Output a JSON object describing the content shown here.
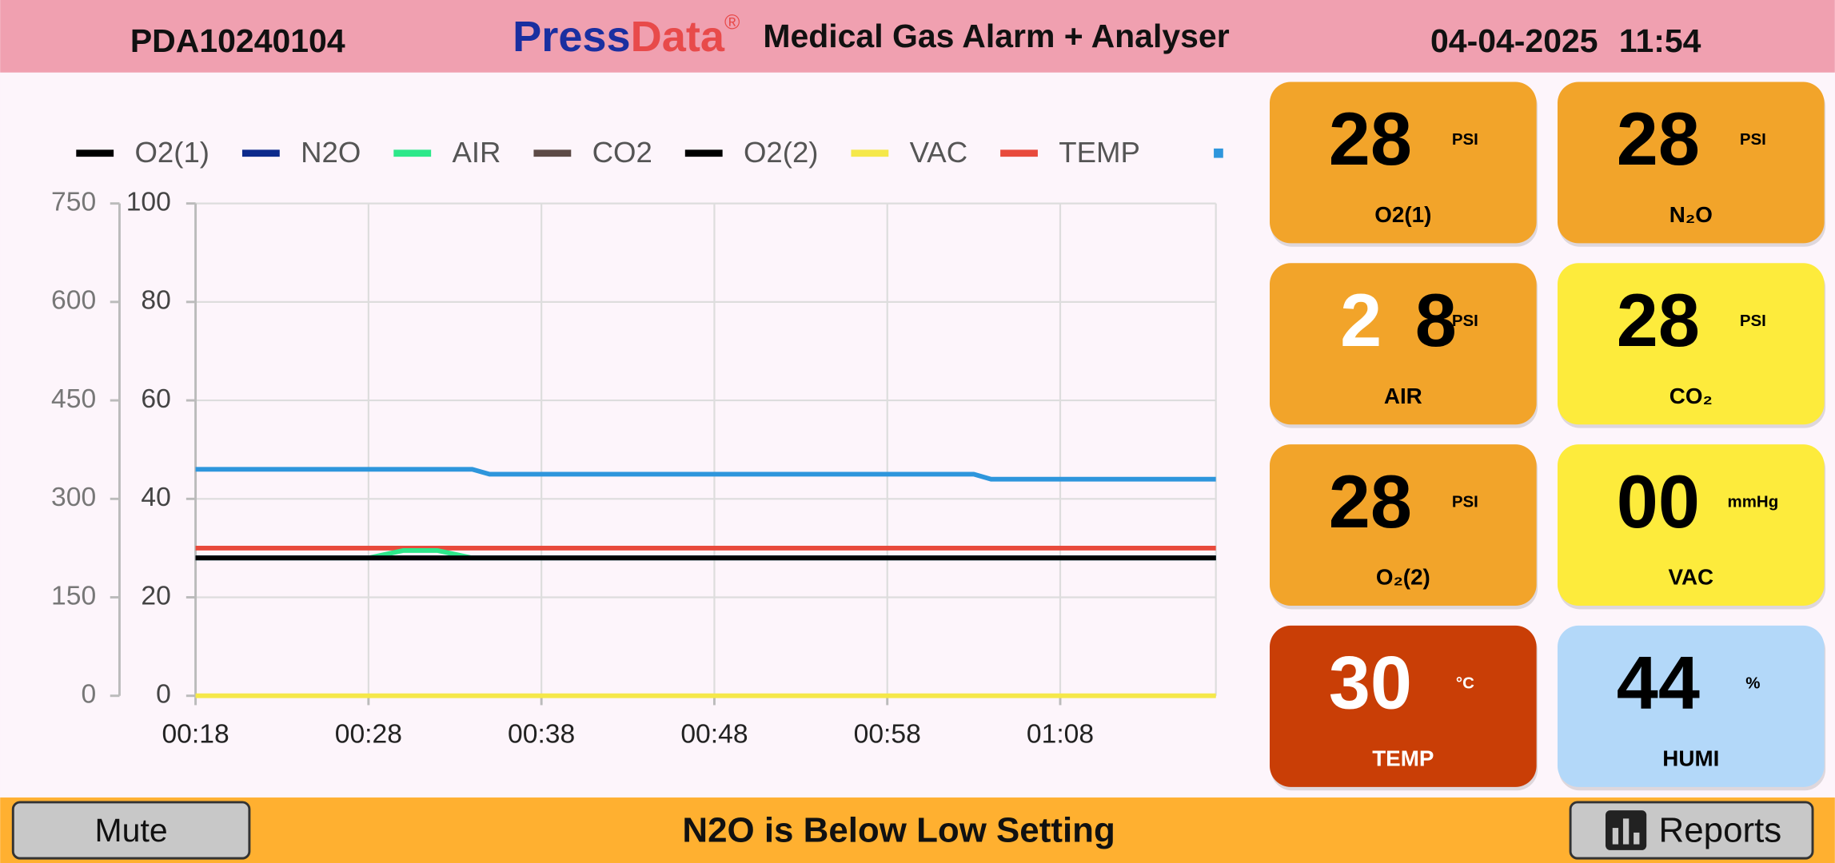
{
  "header": {
    "device_id": "PDA10240104",
    "brand_a": "Press",
    "brand_b": "Data",
    "registered": "®",
    "title": "Medical Gas Alarm + Analyser",
    "date": "04-04-2025",
    "time": "11:54"
  },
  "chart_data": {
    "type": "line",
    "x": [
      18,
      28,
      30,
      32,
      34,
      35,
      63,
      64,
      77
    ],
    "xlim": [
      18,
      77
    ],
    "xticks": [
      {
        "value": 18,
        "label": "00:18"
      },
      {
        "value": 28,
        "label": "00:28"
      },
      {
        "value": 38,
        "label": "00:38"
      },
      {
        "value": 48,
        "label": "00:48"
      },
      {
        "value": 58,
        "label": "00:58"
      },
      {
        "value": 68,
        "label": "01:08"
      }
    ],
    "ylim": [
      0,
      100
    ],
    "yticks": [
      0,
      20,
      40,
      60,
      80,
      100
    ],
    "y2lim": [
      0,
      750
    ],
    "y2ticks": [
      0,
      150,
      300,
      450,
      600,
      750
    ],
    "grid": true,
    "series": [
      {
        "name": "O2(1)",
        "color": "#000000",
        "values": [
          28,
          28,
          28,
          28,
          28,
          28,
          28,
          28,
          28
        ]
      },
      {
        "name": "N2O",
        "color": "#0d2a8c",
        "values": [
          28,
          28,
          28,
          28,
          28,
          28,
          28,
          28,
          28
        ]
      },
      {
        "name": "AIR",
        "color": "#2de88a",
        "values": [
          28,
          28,
          29.5,
          29.5,
          28,
          28,
          28,
          28,
          28
        ]
      },
      {
        "name": "CO2",
        "color": "#5d4a46",
        "values": [
          28,
          28,
          28,
          28,
          28,
          28,
          28,
          28,
          28
        ]
      },
      {
        "name": "O2(2)",
        "color": "#000000",
        "values": [
          28,
          28,
          28,
          28,
          28,
          28,
          28,
          28,
          28
        ]
      },
      {
        "name": "VAC",
        "color": "#f5e84a",
        "axis": "y2",
        "values": [
          0,
          0,
          0,
          0,
          0,
          0,
          0,
          0,
          0
        ]
      },
      {
        "name": "TEMP",
        "color": "#e84a3c",
        "values": [
          30,
          30,
          30,
          30,
          30,
          30,
          30,
          30,
          30
        ]
      },
      {
        "color": "#2e96dc",
        "values": [
          46,
          46,
          46,
          46,
          46,
          45,
          45,
          44,
          44
        ]
      }
    ]
  },
  "tiles": [
    {
      "value": "28",
      "unit": "PSI",
      "label": "O2(1)",
      "color": "#f2a42a",
      "text_color": "#000000"
    },
    {
      "value": "28",
      "unit": "PSI",
      "label": "N₂O",
      "color": "#f2a42a",
      "text_color": "#000000"
    },
    {
      "digits": [
        "2",
        "8"
      ],
      "digit_colors": [
        "#ffffff",
        "#000000"
      ],
      "unit": "PSI",
      "label": "AIR",
      "color": "#f2a42a",
      "text_color": "#000000"
    },
    {
      "value": "28",
      "unit": "PSI",
      "label": "CO₂",
      "color": "#fdeb3c",
      "text_color": "#000000"
    },
    {
      "value": "28",
      "unit": "PSI",
      "label": "O₂(2)",
      "color": "#f2a42a",
      "text_color": "#000000"
    },
    {
      "value": "00",
      "unit": "mmHg",
      "label": "VAC",
      "color": "#fdeb3c",
      "text_color": "#000000"
    },
    {
      "value": "30",
      "unit": "°C",
      "label": "TEMP",
      "color": "#c93e06",
      "text_color": "#ffffff"
    },
    {
      "value": "44",
      "unit": "%",
      "label": "HUMI",
      "color": "#b3d8f9",
      "text_color": "#000000"
    }
  ],
  "footer": {
    "mute": "Mute",
    "message": "N2O is Below Low Setting",
    "reports": "Reports"
  }
}
